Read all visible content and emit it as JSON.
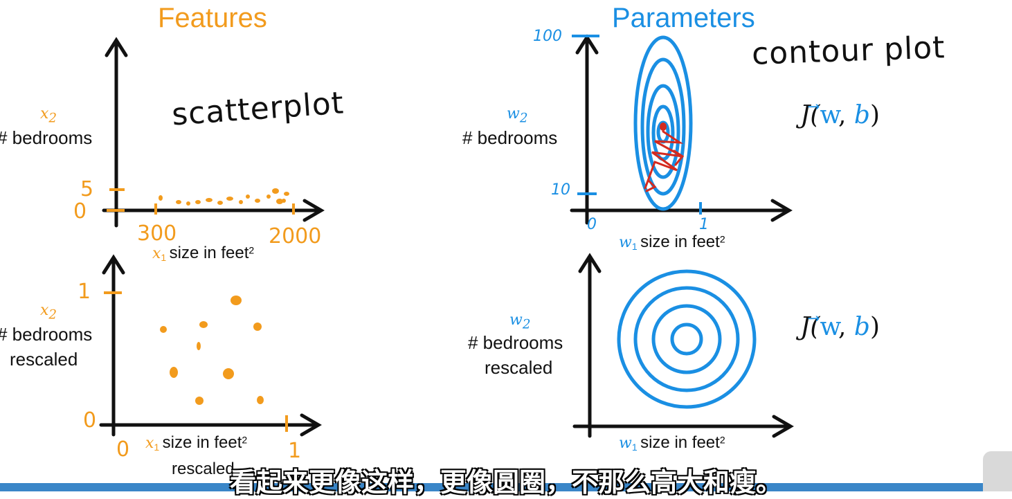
{
  "features_title": "Features",
  "parameters_title": "Parameters",
  "scatterplot_note": "scatterplot",
  "contour_note": "contour plot",
  "top_left": {
    "y_var": "x",
    "y_sub": "2",
    "y_label": "# bedrooms",
    "x_var": "x",
    "x_sub": "1",
    "x_label": "size in feet",
    "x_sup": "2",
    "y_ticks": [
      "5",
      "0"
    ],
    "x_ticks": [
      "300",
      "2000"
    ]
  },
  "bottom_left": {
    "y_var": "x",
    "y_sub": "2",
    "y_label_1": "# bedrooms",
    "y_label_2": "rescaled",
    "x_var": "x",
    "x_sub": "1",
    "x_label": "size in feet",
    "x_sup": "2",
    "x_label_2": "rescaled",
    "y_ticks": [
      "1",
      "0"
    ],
    "x_ticks": [
      "0",
      "1"
    ]
  },
  "top_right": {
    "y_var": "w",
    "y_sub": "2",
    "y_label": "# bedrooms",
    "x_var": "w",
    "x_sub": "1",
    "x_label": "size in feet",
    "x_sup": "2",
    "y_ticks": [
      "100",
      "10"
    ],
    "x_ticks": [
      "0",
      "1"
    ],
    "formula": {
      "J": "J(",
      "w": "w",
      "comma": ", ",
      "b": "b",
      "close": ")"
    }
  },
  "bottom_right": {
    "y_var": "w",
    "y_sub": "2",
    "y_label_1": "# bedrooms",
    "y_label_2": "rescaled",
    "x_var": "w",
    "x_sub": "1",
    "x_label": "size in feet",
    "x_sup": "2",
    "formula": {
      "J": "J(",
      "w": "w",
      "comma": ", ",
      "b": "b",
      "close": ")"
    }
  },
  "subtitle": "看起来更像这样，更像圆圈，不那么高大和瘦。",
  "colors": {
    "orange": "#f29b1d",
    "blue": "#1a8fe3",
    "red": "#d42a1f",
    "black": "#111111"
  }
}
